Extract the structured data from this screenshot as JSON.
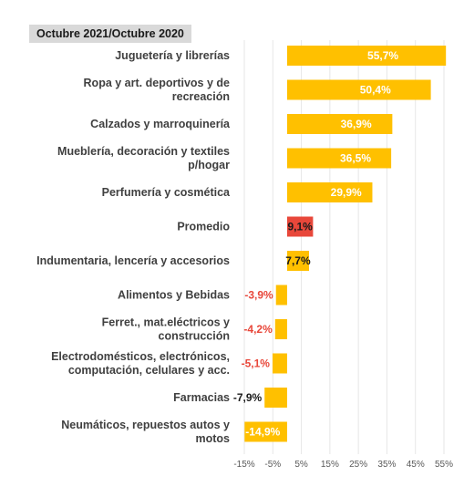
{
  "chart_data": {
    "type": "bar",
    "orientation": "horizontal",
    "title": "Octubre 2021/Octubre 2020",
    "xlabel": "",
    "ylabel": "",
    "grid": true,
    "xlim": [
      -15,
      55
    ],
    "categories": [
      [
        "Juguetería y librerías"
      ],
      [
        "Ropa y art. deportivos y de",
        "recreación"
      ],
      [
        "Calzados y marroquinería"
      ],
      [
        "Mueblería, decoración y textiles",
        "p/hogar"
      ],
      [
        "Perfumería y cosmética"
      ],
      [
        "Promedio"
      ],
      [
        "Indumentaria, lencería y accesorios"
      ],
      [
        "Alimentos y Bebidas"
      ],
      [
        "Ferret., mat.eléctricos y",
        "construcción"
      ],
      [
        "Electrodomésticos, electrónicos,",
        "computación, celulares y acc."
      ],
      [
        "Farmacias"
      ],
      [
        "Neumáticos, repuestos autos y",
        "motos"
      ]
    ],
    "values": [
      55.7,
      50.4,
      36.9,
      36.5,
      29.9,
      9.1,
      7.7,
      -3.9,
      -4.2,
      -5.1,
      -7.9,
      -14.9
    ],
    "value_labels": [
      "55,7%",
      "50,4%",
      "36,9%",
      "36,5%",
      "29,9%",
      "9,1%",
      "7,7%",
      "-3,9%",
      "-4,2%",
      "-5,1%",
      "-7,9%",
      "-14,9%"
    ],
    "x_ticks": [
      -15,
      -5,
      5,
      15,
      25,
      35,
      45,
      55
    ],
    "x_tick_labels": [
      "-15%",
      "-5%",
      "5%",
      "15%",
      "25%",
      "35%",
      "45%",
      "55%"
    ],
    "bar_colors": [
      "#ffc000",
      "#ffc000",
      "#ffc000",
      "#ffc000",
      "#ffc000",
      "#e8473a",
      "#ffc000",
      "#ffc000",
      "#ffc000",
      "#ffc000",
      "#ffc000",
      "#ffc000"
    ],
    "label_colors": [
      "#ffffff",
      "#ffffff",
      "#ffffff",
      "#ffffff",
      "#ffffff",
      "#1a1a1a",
      "#1a1a1a",
      "#e8473a",
      "#e8473a",
      "#e8473a",
      "#1a1a1a",
      "#ffffff"
    ],
    "gridline_color": "#e6e6e6"
  }
}
